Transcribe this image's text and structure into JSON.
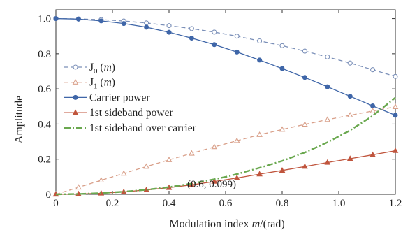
{
  "chart_data": {
    "type": "line",
    "xlabel": "Modulation index m/(rad)",
    "ylabel": "Amplitude",
    "xlim": [
      0,
      1.2
    ],
    "ylim": [
      0,
      1.05
    ],
    "xticks": [
      "0",
      "0.2",
      "0.4",
      "0.6",
      "0.8",
      "1.0",
      "1.2"
    ],
    "yticks": [
      "0",
      "0.2",
      "0.4",
      "0.6",
      "0.8",
      "1.0"
    ],
    "grid": false,
    "legend_position": "left",
    "annotation": {
      "text": "(0.6, 0.099)",
      "x": 0.6,
      "y": 0.099
    },
    "series": [
      {
        "name": "J0 (m)",
        "label_main": "J",
        "label_sub": "0",
        "label_arg": " (",
        "label_var": "m",
        "label_end": ")",
        "color": "#7a8fb8",
        "line": "dashed",
        "marker": "open-circle",
        "x": [
          0,
          0.08,
          0.16,
          0.24,
          0.32,
          0.4,
          0.48,
          0.56,
          0.64,
          0.72,
          0.8,
          0.88,
          0.96,
          1.04,
          1.12,
          1.2
        ],
        "y": [
          1.0,
          0.998,
          0.994,
          0.986,
          0.975,
          0.96,
          0.943,
          0.923,
          0.9,
          0.873,
          0.846,
          0.815,
          0.782,
          0.747,
          0.709,
          0.671
        ]
      },
      {
        "name": "J1 (m)",
        "label_main": "J",
        "label_sub": "1",
        "label_arg": " (",
        "label_var": "m",
        "label_end": ")",
        "color": "#d9a08a",
        "line": "dashed",
        "marker": "open-triangle",
        "x": [
          0,
          0.08,
          0.16,
          0.24,
          0.32,
          0.4,
          0.48,
          0.56,
          0.64,
          0.72,
          0.8,
          0.88,
          0.96,
          1.04,
          1.12,
          1.2
        ],
        "y": [
          0,
          0.04,
          0.08,
          0.119,
          0.158,
          0.196,
          0.233,
          0.27,
          0.305,
          0.339,
          0.369,
          0.398,
          0.425,
          0.45,
          0.474,
          0.498
        ]
      },
      {
        "name": "Carrier power",
        "color": "#3f66a8",
        "line": "solid",
        "marker": "filled-circle",
        "x": [
          0,
          0.08,
          0.16,
          0.24,
          0.32,
          0.4,
          0.48,
          0.56,
          0.64,
          0.72,
          0.8,
          0.88,
          0.96,
          1.04,
          1.12,
          1.2
        ],
        "y": [
          1.0,
          0.997,
          0.987,
          0.972,
          0.951,
          0.922,
          0.889,
          0.852,
          0.81,
          0.764,
          0.716,
          0.665,
          0.612,
          0.558,
          0.503,
          0.45
        ]
      },
      {
        "name": "1st sideband power",
        "color": "#c0553d",
        "line": "solid",
        "marker": "filled-triangle",
        "x": [
          0,
          0.08,
          0.16,
          0.24,
          0.32,
          0.4,
          0.48,
          0.56,
          0.64,
          0.72,
          0.8,
          0.88,
          0.96,
          1.04,
          1.12,
          1.2
        ],
        "y": [
          0,
          0.002,
          0.006,
          0.014,
          0.025,
          0.038,
          0.054,
          0.073,
          0.093,
          0.115,
          0.136,
          0.158,
          0.181,
          0.203,
          0.225,
          0.248
        ]
      },
      {
        "name": "1st sideband over carrier",
        "color": "#6aa84f",
        "line": "dashdot",
        "marker": "none",
        "x": [
          0,
          0.08,
          0.16,
          0.24,
          0.32,
          0.4,
          0.48,
          0.56,
          0.6,
          0.64,
          0.72,
          0.8,
          0.88,
          0.96,
          1.04,
          1.12,
          1.2
        ],
        "y": [
          0,
          0.002,
          0.007,
          0.015,
          0.026,
          0.041,
          0.061,
          0.086,
          0.099,
          0.115,
          0.151,
          0.19,
          0.238,
          0.296,
          0.364,
          0.447,
          0.55
        ]
      }
    ]
  }
}
